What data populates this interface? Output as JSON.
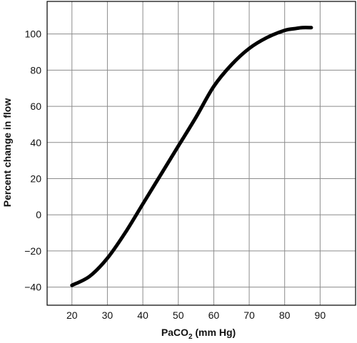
{
  "chart_data": {
    "type": "line",
    "title": "",
    "xlabel": {
      "main": "PaCO",
      "subscript": "2",
      "suffix": " (mm Hg)"
    },
    "ylabel": "Percent change in flow",
    "xlim": [
      13,
      100
    ],
    "ylim": [
      -50,
      118
    ],
    "xticks": [
      20,
      30,
      40,
      50,
      60,
      70,
      80,
      90
    ],
    "yticks": [
      -40,
      -20,
      0,
      20,
      40,
      60,
      80,
      100
    ],
    "xtick_labels": [
      "20",
      "30",
      "40",
      "50",
      "60",
      "70",
      "80",
      "90"
    ],
    "ytick_labels": [
      "−40",
      "−20",
      "0",
      "20",
      "40",
      "60",
      "80",
      "100"
    ],
    "xgrid": [
      20,
      30,
      40,
      50,
      60,
      70,
      80,
      90,
      100
    ],
    "ygrid": [
      -40,
      -20,
      0,
      20,
      40,
      60,
      80,
      100
    ],
    "grid": true,
    "series": [
      {
        "x": [
          20,
          25,
          30,
          35,
          40,
          45,
          50,
          55,
          60,
          65,
          70,
          75,
          80,
          83,
          85,
          87.5
        ],
        "y": [
          -39,
          -34,
          -24,
          -10,
          6,
          22,
          38,
          54,
          71,
          83,
          92,
          98,
          102,
          103,
          103.5,
          103.5
        ],
        "color": "#000000"
      }
    ]
  }
}
